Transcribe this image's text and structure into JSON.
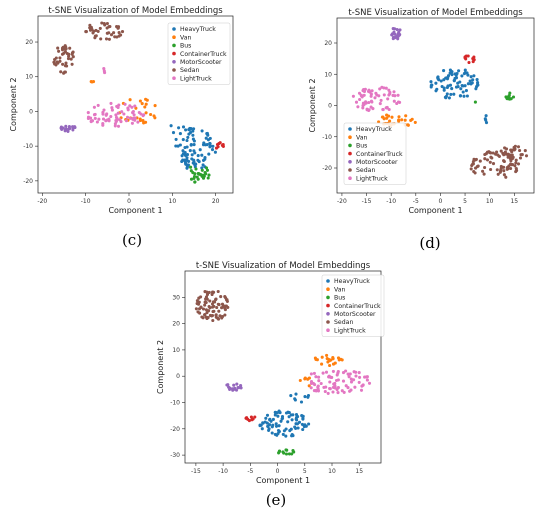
{
  "chart_data": [
    {
      "type": "scatter",
      "panel_caption": "(c)",
      "title": "t-SNE Visualization of Model Embeddings",
      "xlabel": "Component 1",
      "ylabel": "Component 2",
      "xlim": [
        -21,
        24
      ],
      "ylim": [
        -23.5,
        27.5
      ],
      "xticks": [
        -20,
        -10,
        0,
        10,
        20
      ],
      "yticks": [
        -20,
        -10,
        0,
        10,
        20
      ],
      "legend_placement": "top-right",
      "series": [
        {
          "name": "HeavyTruck",
          "color": "#1f77b4",
          "clusters": [
            {
              "cx": 15,
              "cy": -11,
              "rx": 5,
              "ry": 6,
              "n": 80
            },
            {
              "cx": 12,
              "cy": -5,
              "rx": 3,
              "ry": 2,
              "n": 10
            }
          ]
        },
        {
          "name": "Van",
          "color": "#ff7f0e",
          "clusters": [
            {
              "cx": 2,
              "cy": 0,
              "rx": 5,
              "ry": 4,
              "n": 25
            },
            {
              "cx": -8.5,
              "cy": 8.5,
              "rx": 0.5,
              "ry": 0.5,
              "n": 3
            }
          ]
        },
        {
          "name": "Bus",
          "color": "#2ca02c",
          "clusters": [
            {
              "cx": 16,
              "cy": -18,
              "rx": 2.5,
              "ry": 3,
              "n": 30
            }
          ]
        },
        {
          "name": "ContainerTruck",
          "color": "#d62728",
          "clusters": [
            {
              "cx": 21,
              "cy": -10,
              "rx": 1,
              "ry": 1,
              "n": 8
            }
          ]
        },
        {
          "name": "MotorScooter",
          "color": "#9467bd",
          "clusters": [
            {
              "cx": -14,
              "cy": -5,
              "rx": 2,
              "ry": 1.2,
              "n": 18
            }
          ]
        },
        {
          "name": "Sedan",
          "color": "#8c564b",
          "clusters": [
            {
              "cx": -6,
              "cy": 23,
              "rx": 4.5,
              "ry": 2.5,
              "n": 40
            },
            {
              "cx": -15,
              "cy": 15,
              "rx": 2.5,
              "ry": 4,
              "n": 40
            }
          ]
        },
        {
          "name": "LightTruck",
          "color": "#e377c2",
          "clusters": [
            {
              "cx": -3,
              "cy": -1,
              "rx": 7,
              "ry": 3.5,
              "n": 70
            },
            {
              "cx": -6,
              "cy": 11.5,
              "rx": 1,
              "ry": 1,
              "n": 3
            }
          ]
        }
      ]
    },
    {
      "type": "scatter",
      "panel_caption": "(d)",
      "title": "t-SNE Visualization of Model Embeddings",
      "xlabel": "Component 1",
      "ylabel": "Component 2",
      "xlim": [
        -21,
        19
      ],
      "ylim": [
        -28,
        28
      ],
      "xticks": [
        -20,
        -15,
        -10,
        -5,
        0,
        5,
        10,
        15
      ],
      "yticks": [
        -20,
        -10,
        0,
        10,
        20
      ],
      "legend_placement": "bottom-left",
      "series": [
        {
          "name": "HeavyTruck",
          "color": "#1f77b4",
          "clusters": [
            {
              "cx": 3,
              "cy": 7,
              "rx": 5,
              "ry": 5,
              "n": 80
            },
            {
              "cx": 9.5,
              "cy": -5,
              "rx": 0.5,
              "ry": 2,
              "n": 4
            }
          ]
        },
        {
          "name": "Van",
          "color": "#ff7f0e",
          "clusters": [
            {
              "cx": -9,
              "cy": -5,
              "rx": 4,
              "ry": 2.2,
              "n": 30
            }
          ]
        },
        {
          "name": "Bus",
          "color": "#2ca02c",
          "clusters": [
            {
              "cx": 14,
              "cy": 3,
              "rx": 1,
              "ry": 1,
              "n": 12
            },
            {
              "cx": 7,
              "cy": 1,
              "rx": 0.3,
              "ry": 0.3,
              "n": 1
            }
          ]
        },
        {
          "name": "ContainerTruck",
          "color": "#d62728",
          "clusters": [
            {
              "cx": 6,
              "cy": 15,
              "rx": 1.3,
              "ry": 1.3,
              "n": 10
            }
          ]
        },
        {
          "name": "MotorScooter",
          "color": "#9467bd",
          "clusters": [
            {
              "cx": -9,
              "cy": 23,
              "rx": 1,
              "ry": 2,
              "n": 20
            }
          ]
        },
        {
          "name": "Sedan",
          "color": "#8c564b",
          "clusters": [
            {
              "cx": 11,
              "cy": -19,
              "rx": 5,
              "ry": 4.5,
              "n": 75
            },
            {
              "cx": 15,
              "cy": -15,
              "rx": 3,
              "ry": 2,
              "n": 25
            }
          ]
        },
        {
          "name": "LightTruck",
          "color": "#e377c2",
          "clusters": [
            {
              "cx": -13,
              "cy": 2,
              "rx": 5,
              "ry": 4,
              "n": 65
            }
          ]
        }
      ]
    },
    {
      "type": "scatter",
      "panel_caption": "(e)",
      "title": "t-SNE Visualization of Model Embeddings",
      "xlabel": "Component 1",
      "ylabel": "Component 2",
      "xlim": [
        -17,
        19
      ],
      "ylim": [
        -33,
        40
      ],
      "xticks": [
        -15,
        -10,
        -5,
        0,
        5,
        10,
        15
      ],
      "yticks": [
        -30,
        -20,
        -10,
        0,
        10,
        20,
        30
      ],
      "legend_placement": "top-right",
      "series": [
        {
          "name": "HeavyTruck",
          "color": "#1f77b4",
          "clusters": [
            {
              "cx": 1,
              "cy": -18,
              "rx": 5,
              "ry": 5,
              "n": 80
            },
            {
              "cx": 4,
              "cy": -8,
              "rx": 2,
              "ry": 2,
              "n": 8
            }
          ]
        },
        {
          "name": "Van",
          "color": "#ff7f0e",
          "clusters": [
            {
              "cx": 9,
              "cy": 6,
              "rx": 3,
              "ry": 2,
              "n": 20
            },
            {
              "cx": 5,
              "cy": -2,
              "rx": 1.5,
              "ry": 2,
              "n": 6
            }
          ]
        },
        {
          "name": "Bus",
          "color": "#2ca02c",
          "clusters": [
            {
              "cx": 2,
              "cy": -29,
              "rx": 2,
              "ry": 1,
              "n": 12
            }
          ]
        },
        {
          "name": "ContainerTruck",
          "color": "#d62728",
          "clusters": [
            {
              "cx": -5,
              "cy": -16,
              "rx": 1,
              "ry": 1,
              "n": 8
            }
          ]
        },
        {
          "name": "MotorScooter",
          "color": "#9467bd",
          "clusters": [
            {
              "cx": -8,
              "cy": -4,
              "rx": 1.5,
              "ry": 1.5,
              "n": 16
            }
          ]
        },
        {
          "name": "Sedan",
          "color": "#8c564b",
          "clusters": [
            {
              "cx": -12,
              "cy": 27,
              "rx": 3,
              "ry": 6,
              "n": 85
            }
          ]
        },
        {
          "name": "LightTruck",
          "color": "#e377c2",
          "clusters": [
            {
              "cx": 11,
              "cy": -2,
              "rx": 6,
              "ry": 5,
              "n": 80
            }
          ]
        }
      ]
    }
  ]
}
